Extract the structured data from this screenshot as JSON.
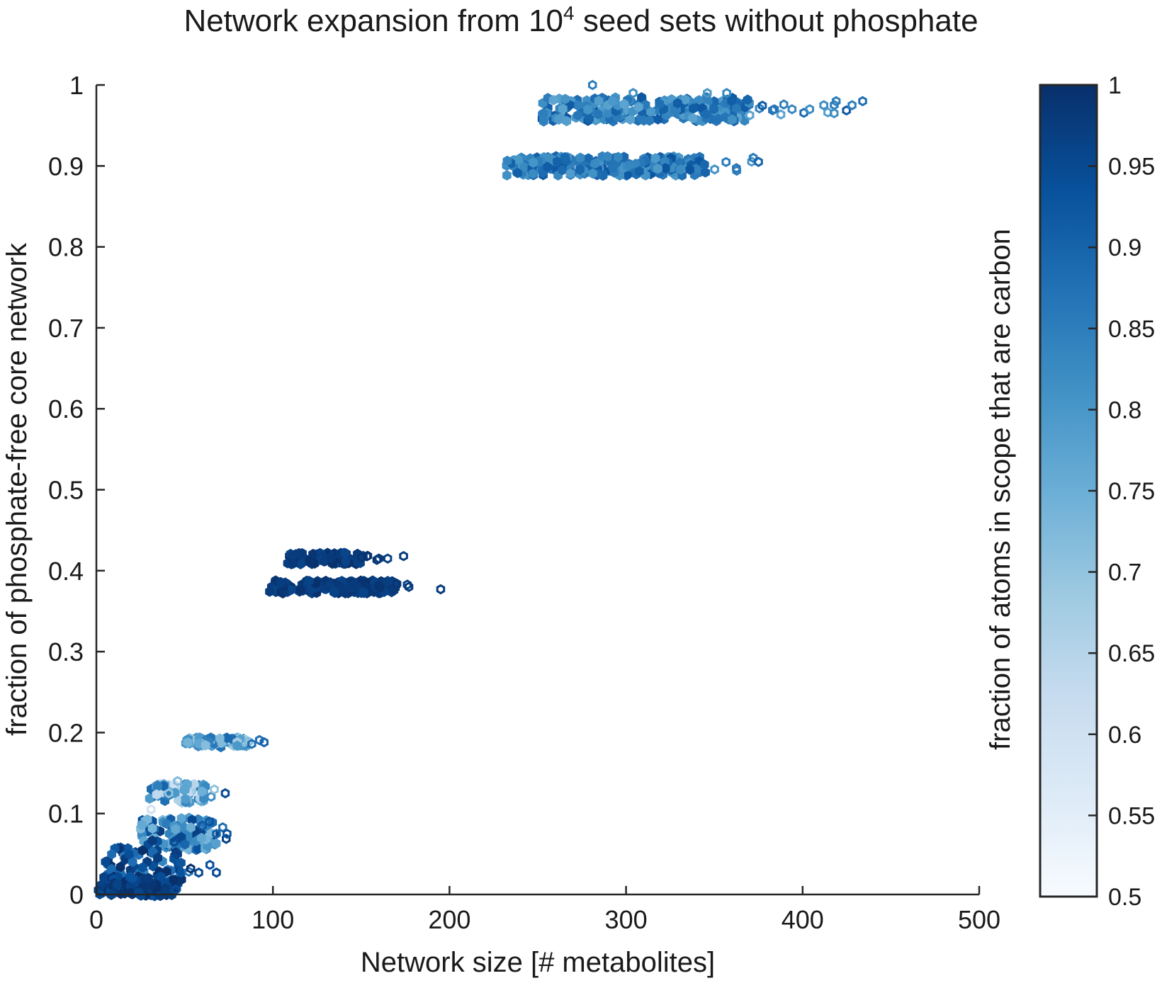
{
  "chart_data": {
    "type": "scatter",
    "title": "Network expansion from 10",
    "title_superscript": "4",
    "title_suffix": " seed sets without phosphate",
    "xlabel": "Network size [# metabolites]",
    "ylabel": "fraction of phosphate-free core network",
    "xlim": [
      0,
      500
    ],
    "ylim": [
      0,
      1
    ],
    "x_ticks": [
      "0",
      "100",
      "200",
      "300",
      "400",
      "500"
    ],
    "y_ticks": [
      "0",
      "0.1",
      "0.2",
      "0.3",
      "0.4",
      "0.5",
      "0.6",
      "0.7",
      "0.8",
      "0.9",
      "1"
    ],
    "grid": false,
    "marker": "hexagon",
    "colorbar": {
      "label": "fraction of atoms in scope that are carbon",
      "range": [
        0.5,
        1
      ],
      "ticks": [
        "0.5",
        "0.55",
        "0.6",
        "0.65",
        "0.7",
        "0.75",
        "0.8",
        "0.85",
        "0.9",
        "0.95",
        "1"
      ],
      "colormap": "blues",
      "color_low": "#f7fbff",
      "color_high": "#08306b"
    },
    "clusters": [
      {
        "x_range": [
          252,
          435
        ],
        "y": 0.97,
        "y_spread": 0.015,
        "dense_x_max": 370,
        "color_value": 0.85,
        "color_spread": 0.08
      },
      {
        "x_range": [
          232,
          375
        ],
        "y": 0.9,
        "y_spread": 0.012,
        "dense_x_max": 345,
        "color_value": 0.86,
        "color_spread": 0.07
      },
      {
        "x_range": [
          98,
          178
        ],
        "y": 0.38,
        "y_spread": 0.008,
        "dense_x_max": 170,
        "color_value": 0.98,
        "color_spread": 0.02
      },
      {
        "x_range": [
          108,
          177
        ],
        "y": 0.415,
        "y_spread": 0.007,
        "dense_x_max": 150,
        "color_value": 0.98,
        "color_spread": 0.02
      },
      {
        "x_range": [
          48,
          95
        ],
        "y": 0.188,
        "y_spread": 0.006,
        "dense_x_max": 85,
        "color_value": 0.78,
        "color_spread": 0.12
      },
      {
        "x_range": [
          30,
          74
        ],
        "y": 0.125,
        "y_spread": 0.012,
        "dense_x_max": 62,
        "color_value": 0.75,
        "color_spread": 0.15
      },
      {
        "x_range": [
          25,
          75
        ],
        "y": 0.075,
        "y_spread": 0.02,
        "dense_x_max": 68,
        "color_value": 0.85,
        "color_spread": 0.13
      },
      {
        "x_range": [
          5,
          70
        ],
        "y": 0.03,
        "y_spread": 0.03,
        "dense_x_max": 50,
        "color_value": 0.92,
        "color_spread": 0.09
      },
      {
        "x_range": [
          0,
          45
        ],
        "y": 0.01,
        "y_spread": 0.012,
        "dense_x_max": 45,
        "color_value": 0.97,
        "color_spread": 0.04
      }
    ],
    "outliers": [
      {
        "x": 281,
        "y": 1.0,
        "c": 0.85
      },
      {
        "x": 304,
        "y": 0.99,
        "c": 0.82
      },
      {
        "x": 346,
        "y": 0.99,
        "c": 0.8
      },
      {
        "x": 357,
        "y": 0.99,
        "c": 0.83
      },
      {
        "x": 384,
        "y": 0.97,
        "c": 0.86
      },
      {
        "x": 394,
        "y": 0.97,
        "c": 0.83
      },
      {
        "x": 404,
        "y": 0.97,
        "c": 0.82
      },
      {
        "x": 412,
        "y": 0.975,
        "c": 0.82
      },
      {
        "x": 419,
        "y": 0.98,
        "c": 0.85
      },
      {
        "x": 428,
        "y": 0.975,
        "c": 0.85
      },
      {
        "x": 434,
        "y": 0.98,
        "c": 0.88
      },
      {
        "x": 372,
        "y": 0.91,
        "c": 0.86
      },
      {
        "x": 375,
        "y": 0.905,
        "c": 0.9
      },
      {
        "x": 195,
        "y": 0.377,
        "c": 0.98
      },
      {
        "x": 177,
        "y": 0.38,
        "c": 0.98
      },
      {
        "x": 174,
        "y": 0.418,
        "c": 0.98
      },
      {
        "x": 165,
        "y": 0.415,
        "c": 0.97
      },
      {
        "x": 160,
        "y": 0.415,
        "c": 0.98
      },
      {
        "x": 95,
        "y": 0.188,
        "c": 0.9
      },
      {
        "x": 88,
        "y": 0.186,
        "c": 0.88
      },
      {
        "x": 73,
        "y": 0.125,
        "c": 0.95
      },
      {
        "x": 74,
        "y": 0.075,
        "c": 0.93
      },
      {
        "x": 68,
        "y": 0.075,
        "c": 0.9
      },
      {
        "x": 64,
        "y": 0.09,
        "c": 0.93
      },
      {
        "x": 60,
        "y": 0.085,
        "c": 0.92
      },
      {
        "x": 68,
        "y": 0.027,
        "c": 0.95
      },
      {
        "x": 58,
        "y": 0.027,
        "c": 0.95
      },
      {
        "x": 46,
        "y": 0.05,
        "c": 0.97
      },
      {
        "x": 44,
        "y": 0.065,
        "c": 0.95
      },
      {
        "x": 46,
        "y": 0.14,
        "c": 0.72
      },
      {
        "x": 41,
        "y": 0.125,
        "c": 0.7
      },
      {
        "x": 31,
        "y": 0.105,
        "c": 0.6
      }
    ]
  }
}
